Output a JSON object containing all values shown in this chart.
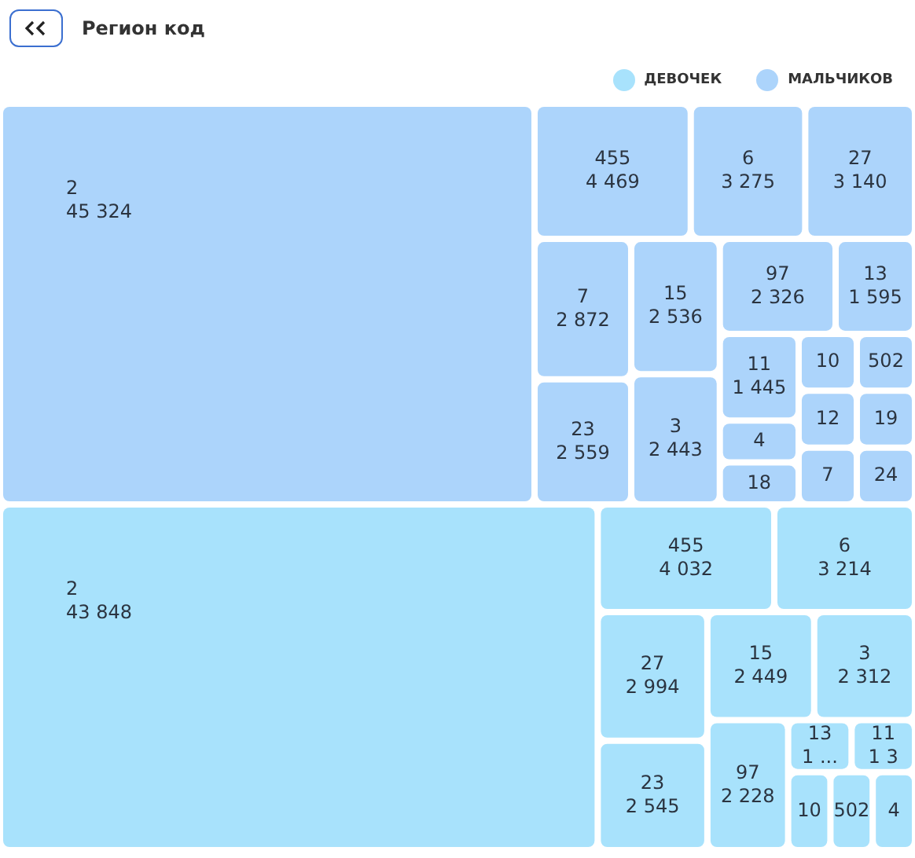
{
  "chart_data": [
    {
      "type": "other",
      "title": "Регион код",
      "legend": "top right",
      "categories": [
        "2",
        "455",
        "6",
        "27",
        "7",
        "23",
        "15",
        "3",
        "97",
        "13",
        "11",
        "4",
        "18",
        "10",
        "502",
        "12",
        "7",
        "19",
        "24"
      ],
      "series": [
        {
          "name": "МАЛЬЧИКОВ",
          "color": "#acd4fb",
          "values": [
            45324,
            4469,
            3275,
            3140,
            2872,
            2559,
            2536,
            2443,
            2326,
            1595,
            1445,
            null,
            null,
            null,
            null,
            null,
            null,
            null,
            null
          ]
        }
      ],
      "data_labels": true
    },
    {
      "type": "other",
      "legend": "top right",
      "categories": [
        "2",
        "455",
        "6",
        "27",
        "23",
        "15",
        "3",
        "97",
        "13",
        "11",
        "10",
        "502",
        "4"
      ],
      "series": [
        {
          "name": "ДЕВОЧЕК",
          "color": "#a8e2fc",
          "values": [
            43848,
            4032,
            3214,
            2994,
            2545,
            2449,
            2312,
            2228,
            null,
            null,
            null,
            null,
            null
          ]
        }
      ],
      "data_labels": true,
      "value_labels": [
        null,
        null,
        null,
        null,
        null,
        null,
        null,
        null,
        "1 ...",
        "1 3",
        null,
        null,
        null
      ]
    }
  ]
}
